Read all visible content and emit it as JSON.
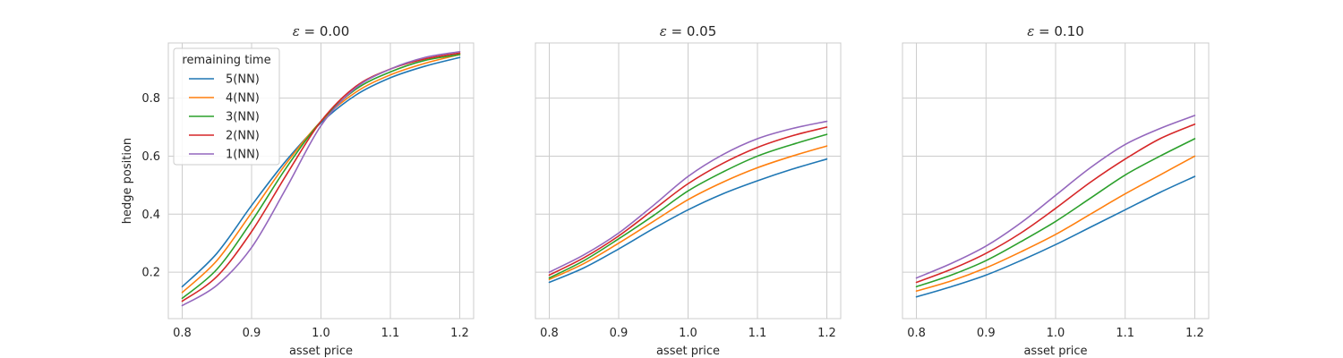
{
  "chart_data": [
    {
      "type": "line",
      "title_symbol": "ε",
      "title_value": " = 0.00",
      "xlabel": "asset price",
      "ylabel": "hedge position",
      "xlim": [
        0.78,
        1.22
      ],
      "ylim": [
        0.04,
        0.99
      ],
      "xticks": [
        "0.8",
        "0.9",
        "1.0",
        "1.1",
        "1.2"
      ],
      "yticks": [
        "0.2",
        "0.4",
        "0.6",
        "0.8"
      ],
      "grid": true,
      "legend": {
        "title": "remaining time",
        "placement": "upper-left",
        "entries": [
          "5(NN)",
          "4(NN)",
          "3(NN)",
          "2(NN)",
          "1(NN)"
        ]
      },
      "x": [
        0.8,
        0.85,
        0.9,
        0.95,
        1.0,
        1.05,
        1.1,
        1.15,
        1.2
      ],
      "series": [
        {
          "name": "5(NN)",
          "color": "#1f77b4",
          "values": [
            0.15,
            0.265,
            0.43,
            0.585,
            0.715,
            0.81,
            0.87,
            0.91,
            0.94
          ]
        },
        {
          "name": "4(NN)",
          "color": "#ff7f0e",
          "values": [
            0.13,
            0.24,
            0.405,
            0.575,
            0.72,
            0.82,
            0.88,
            0.92,
            0.95
          ]
        },
        {
          "name": "3(NN)",
          "color": "#2ca02c",
          "values": [
            0.11,
            0.21,
            0.375,
            0.56,
            0.72,
            0.83,
            0.89,
            0.93,
            0.95
          ]
        },
        {
          "name": "2(NN)",
          "color": "#d62728",
          "values": [
            0.1,
            0.185,
            0.34,
            0.535,
            0.72,
            0.84,
            0.9,
            0.935,
            0.955
          ]
        },
        {
          "name": "1(NN)",
          "color": "#9467bd",
          "values": [
            0.085,
            0.155,
            0.285,
            0.49,
            0.705,
            0.835,
            0.9,
            0.94,
            0.96
          ]
        }
      ]
    },
    {
      "type": "line",
      "title_symbol": "ε",
      "title_value": " = 0.05",
      "xlabel": "asset price",
      "ylabel": "",
      "xlim": [
        0.78,
        1.22
      ],
      "ylim": [
        0.04,
        0.99
      ],
      "xticks": [
        "0.8",
        "0.9",
        "1.0",
        "1.1",
        "1.2"
      ],
      "yticks": [],
      "grid": true,
      "x": [
        0.8,
        0.85,
        0.9,
        0.95,
        1.0,
        1.05,
        1.1,
        1.15,
        1.2
      ],
      "series": [
        {
          "name": "5(NN)",
          "color": "#1f77b4",
          "values": [
            0.165,
            0.215,
            0.28,
            0.35,
            0.415,
            0.47,
            0.515,
            0.555,
            0.59
          ]
        },
        {
          "name": "4(NN)",
          "color": "#ff7f0e",
          "values": [
            0.175,
            0.23,
            0.3,
            0.375,
            0.45,
            0.51,
            0.56,
            0.6,
            0.635
          ]
        },
        {
          "name": "3(NN)",
          "color": "#2ca02c",
          "values": [
            0.18,
            0.24,
            0.315,
            0.395,
            0.48,
            0.545,
            0.6,
            0.64,
            0.675
          ]
        },
        {
          "name": "2(NN)",
          "color": "#d62728",
          "values": [
            0.19,
            0.25,
            0.325,
            0.415,
            0.505,
            0.575,
            0.63,
            0.67,
            0.7
          ]
        },
        {
          "name": "1(NN)",
          "color": "#9467bd",
          "values": [
            0.2,
            0.26,
            0.335,
            0.43,
            0.53,
            0.605,
            0.66,
            0.695,
            0.72
          ]
        }
      ]
    },
    {
      "type": "line",
      "title_symbol": "ε",
      "title_value": " = 0.10",
      "xlabel": "asset price",
      "ylabel": "",
      "xlim": [
        0.78,
        1.22
      ],
      "ylim": [
        0.04,
        0.99
      ],
      "xticks": [
        "0.8",
        "0.9",
        "1.0",
        "1.1",
        "1.2"
      ],
      "yticks": [],
      "grid": true,
      "x": [
        0.8,
        0.85,
        0.9,
        0.95,
        1.0,
        1.05,
        1.1,
        1.15,
        1.2
      ],
      "series": [
        {
          "name": "5(NN)",
          "color": "#1f77b4",
          "values": [
            0.115,
            0.15,
            0.19,
            0.24,
            0.295,
            0.355,
            0.415,
            0.475,
            0.53
          ]
        },
        {
          "name": "4(NN)",
          "color": "#ff7f0e",
          "values": [
            0.135,
            0.17,
            0.215,
            0.27,
            0.33,
            0.4,
            0.47,
            0.535,
            0.6
          ]
        },
        {
          "name": "3(NN)",
          "color": "#2ca02c",
          "values": [
            0.15,
            0.19,
            0.24,
            0.305,
            0.375,
            0.455,
            0.535,
            0.6,
            0.66
          ]
        },
        {
          "name": "2(NN)",
          "color": "#d62728",
          "values": [
            0.165,
            0.21,
            0.265,
            0.335,
            0.42,
            0.51,
            0.59,
            0.66,
            0.71
          ]
        },
        {
          "name": "1(NN)",
          "color": "#9467bd",
          "values": [
            0.18,
            0.23,
            0.29,
            0.37,
            0.465,
            0.56,
            0.64,
            0.695,
            0.74
          ]
        }
      ]
    }
  ]
}
